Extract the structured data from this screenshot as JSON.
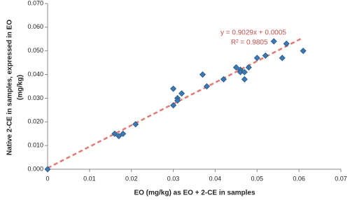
{
  "chart_data": {
    "type": "scatter",
    "x_label": "EO (mg/kg)  as EO + 2-CE in samples",
    "y_label": [
      "Native 2-CE in samples, expressed in EO",
      "(mg/kg)"
    ],
    "x": [
      0,
      0.016,
      0.017,
      0.018,
      0.021,
      0.03,
      0.03,
      0.031,
      0.031,
      0.032,
      0.037,
      0.038,
      0.042,
      0.045,
      0.046,
      0.046,
      0.047,
      0.047,
      0.048,
      0.05,
      0.052,
      0.054,
      0.056,
      0.057,
      0.061
    ],
    "values": [
      0,
      0.015,
      0.014,
      0.015,
      0.019,
      0.027,
      0.034,
      0.03,
      0.029,
      0.032,
      0.04,
      0.035,
      0.038,
      0.043,
      0.042,
      0.041,
      0.041,
      0.038,
      0.043,
      0.047,
      0.048,
      0.054,
      0.047,
      0.053,
      0.05
    ],
    "color": "#3b78b5",
    "trendline": {
      "equation": "y = 0.9029x + 0.0005",
      "r2": "R² = 0.9805",
      "x": [
        0,
        0.061
      ],
      "y": [
        0.0005,
        0.0556
      ],
      "color": "#e07b73"
    },
    "xlim": [
      0,
      0.07
    ],
    "xticks": [
      0,
      0.01,
      0.02,
      0.03,
      0.04,
      0.05,
      0.06,
      0.07
    ],
    "ylim": [
      0,
      0.07
    ],
    "yticks": [
      {
        "value": 0,
        "label": "0.000"
      },
      {
        "value": 0.01,
        "label": "0.010"
      },
      {
        "value": 0.02,
        "label": "0.020"
      },
      {
        "value": 0.03,
        "label": "0.030"
      },
      {
        "value": 0.04,
        "label": "0.040"
      },
      {
        "value": 0.05,
        "label": "0.050"
      },
      {
        "value": 0.06,
        "label": "0.060"
      },
      {
        "value": 0.07,
        "label": "0.070"
      }
    ],
    "grid": false
  }
}
